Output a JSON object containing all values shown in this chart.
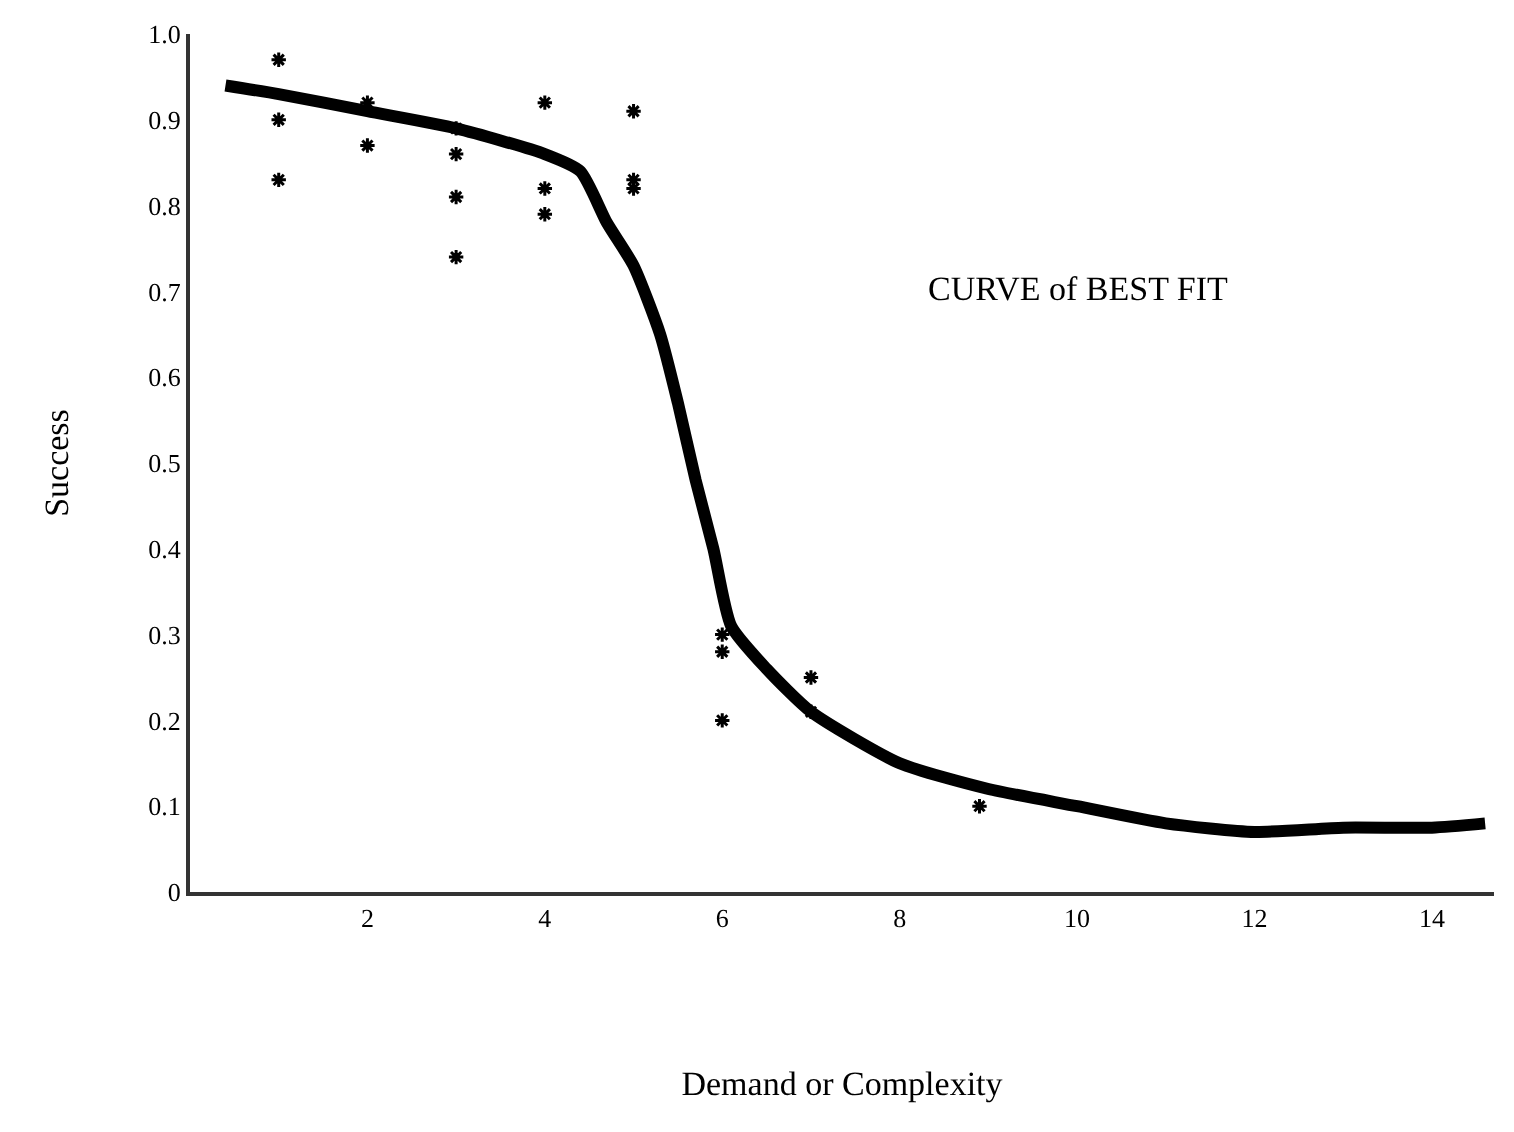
{
  "chart_data": {
    "type": "scatter",
    "xlabel": "Demand or Complexity",
    "ylabel": "Success",
    "annotations": [
      "CURVE of BEST FIT"
    ],
    "xlim": [
      0,
      14.7
    ],
    "xticks": [
      2,
      4,
      6,
      8,
      10,
      12,
      14
    ],
    "ylim": [
      0,
      1.0
    ],
    "yticks": [
      0,
      0.1,
      0.2,
      0.3,
      0.4,
      0.5,
      0.6,
      0.7,
      0.8,
      0.9,
      {
        "value": 1.0,
        "label": "1.0"
      }
    ],
    "series": [
      {
        "type": "line",
        "color": "#000000",
        "line_style": "solid",
        "marker": "none",
        "x": [
          0.4,
          1,
          2,
          3,
          4,
          4.4,
          4.7,
          5,
          5.3,
          5.5,
          5.7,
          5.9,
          6.1,
          6.5,
          7,
          8,
          9,
          10,
          11,
          12,
          13,
          14,
          14.6
        ],
        "values": [
          0.94,
          0.93,
          0.91,
          0.89,
          0.86,
          0.84,
          0.78,
          0.73,
          0.65,
          0.57,
          0.48,
          0.4,
          0.31,
          0.26,
          0.21,
          0.15,
          0.12,
          0.1,
          0.08,
          0.07,
          0.075,
          0.075,
          0.08
        ]
      },
      {
        "color": "#000000",
        "marker": "cross",
        "x": [
          1,
          1,
          1,
          2,
          2,
          3,
          3,
          3,
          3,
          4,
          4,
          4,
          5,
          5,
          5,
          6,
          6,
          6,
          7,
          7,
          8.9
        ],
        "values": [
          0.97,
          0.9,
          0.83,
          0.92,
          0.87,
          0.89,
          0.86,
          0.81,
          0.74,
          0.92,
          0.82,
          0.79,
          0.91,
          0.83,
          0.82,
          0.3,
          0.28,
          0.2,
          0.25,
          0.21,
          0.1
        ]
      }
    ]
  }
}
